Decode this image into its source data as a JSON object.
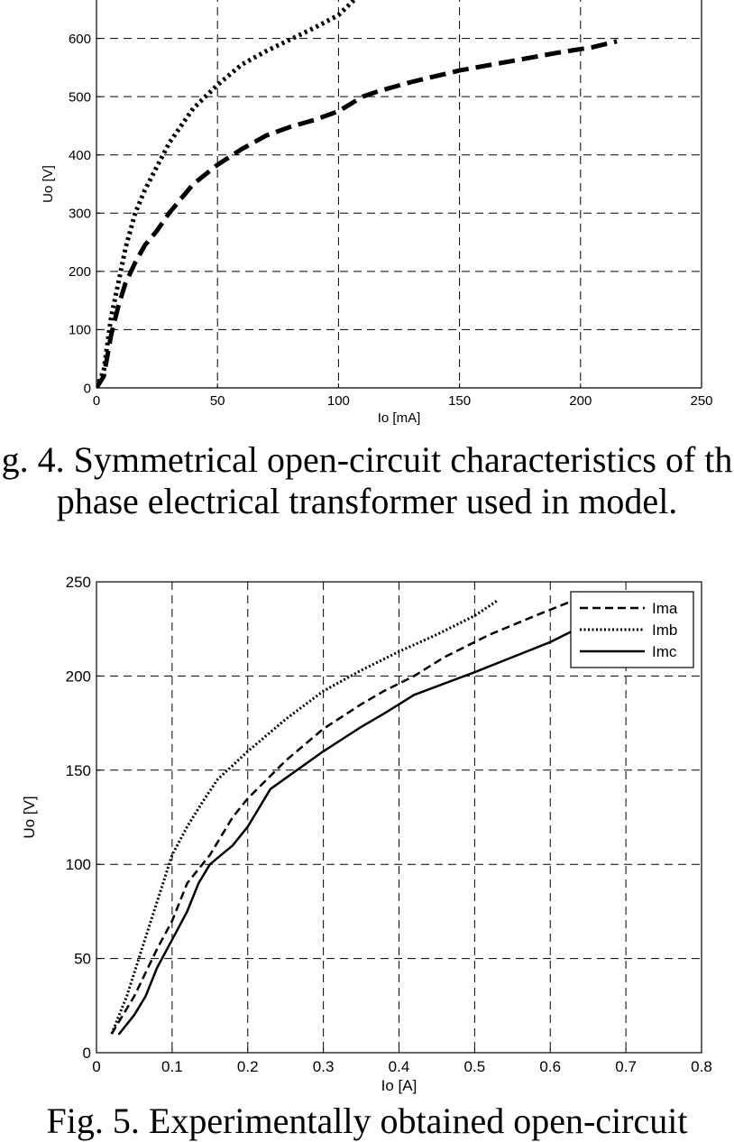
{
  "chart_data": [
    {
      "type": "line",
      "xlabel": "Io [mA]",
      "ylabel": "Uo [V]",
      "xlim": [
        0,
        250
      ],
      "ylim": [
        0,
        700
      ],
      "xticks": [
        0,
        50,
        100,
        150,
        200,
        250
      ],
      "yticks": [
        0,
        100,
        200,
        300,
        400,
        500,
        600
      ],
      "grid": true,
      "series": [
        {
          "style": "dotted",
          "x": [
            0,
            3,
            6,
            9,
            12,
            16,
            20,
            25,
            30,
            35,
            40,
            50,
            60,
            70,
            80,
            90,
            100,
            110
          ],
          "values": [
            0,
            30,
            120,
            180,
            240,
            300,
            340,
            380,
            420,
            450,
            480,
            520,
            555,
            578,
            598,
            618,
            640,
            680
          ]
        },
        {
          "style": "dashed",
          "x": [
            0,
            3,
            6,
            9,
            12,
            16,
            20,
            25,
            30,
            35,
            40,
            50,
            60,
            70,
            80,
            90,
            100,
            110,
            117,
            130,
            150,
            170,
            190,
            205,
            215
          ],
          "values": [
            0,
            20,
            90,
            140,
            180,
            215,
            245,
            270,
            300,
            325,
            350,
            383,
            410,
            433,
            448,
            460,
            475,
            500,
            510,
            525,
            545,
            560,
            575,
            585,
            595
          ]
        }
      ]
    },
    {
      "type": "line",
      "xlabel": "Io [A]",
      "ylabel": "Uo [V]",
      "xlim": [
        0,
        0.8
      ],
      "ylim": [
        0,
        250
      ],
      "xticks": [
        0,
        0.1,
        0.2,
        0.3,
        0.4,
        0.5,
        0.6,
        0.7,
        0.8
      ],
      "yticks": [
        0,
        50,
        100,
        150,
        200,
        250
      ],
      "grid": true,
      "legend": "top-right",
      "series": [
        {
          "name": "Ima",
          "style": "dashed",
          "x": [
            0.02,
            0.05,
            0.08,
            0.1,
            0.12,
            0.15,
            0.18,
            0.2,
            0.25,
            0.3,
            0.35,
            0.38,
            0.42,
            0.46,
            0.52,
            0.58,
            0.63
          ],
          "values": [
            10,
            30,
            55,
            70,
            90,
            105,
            125,
            135,
            155,
            172,
            185,
            192,
            200,
            210,
            222,
            232,
            240
          ]
        },
        {
          "name": "Imb",
          "style": "dotted",
          "x": [
            0.02,
            0.04,
            0.06,
            0.08,
            0.1,
            0.12,
            0.14,
            0.16,
            0.2,
            0.25,
            0.3,
            0.35,
            0.4,
            0.45,
            0.5,
            0.53
          ],
          "values": [
            10,
            30,
            55,
            80,
            105,
            120,
            133,
            145,
            160,
            177,
            192,
            203,
            213,
            222,
            232,
            240
          ]
        },
        {
          "name": "Imc",
          "style": "solid",
          "x": [
            0.03,
            0.05,
            0.065,
            0.08,
            0.1,
            0.12,
            0.135,
            0.15,
            0.18,
            0.2,
            0.23,
            0.3,
            0.35,
            0.38,
            0.42,
            0.5,
            0.55,
            0.6,
            0.63
          ],
          "values": [
            10,
            20,
            30,
            45,
            60,
            75,
            90,
            100,
            110,
            120,
            140,
            160,
            173,
            180,
            190,
            202,
            210,
            218,
            224
          ]
        }
      ]
    }
  ],
  "captions": {
    "fig4_line1": "g. 4. Symmetrical open-circuit characteristics of th",
    "fig4_line2": "phase electrical transformer used in model.",
    "fig5_line1": "Fig. 5. Experimentally obtained open-circuit"
  }
}
